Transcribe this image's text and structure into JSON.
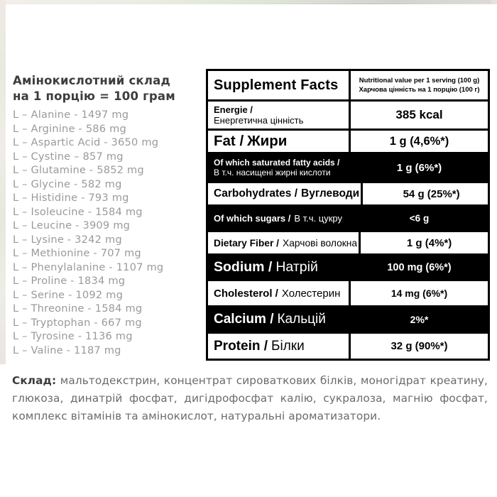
{
  "left_panel": {
    "heading_line1": "Амінокислотний склад",
    "heading_line2": "на 1 порцію = 100 грам",
    "amino_acids": [
      "L – Alanine - 1497 mg",
      "L – Arginine - 586 mg",
      "L – Aspartic Acid - 3650 mg",
      "L – Cystine – 857 mg",
      "L – Glutamine - 5852 mg",
      "L – Glycine - 582 mg",
      "L – Histidine - 793 mg",
      "L – Isoleucine - 1584 mg",
      "L – Leucine - 3909 mg",
      "L – Lysine - 3242 mg",
      "L – Methionine - 707 mg",
      "L – Phenylalanine - 1107 mg",
      "L – Proline - 1834 mg",
      "L – Serine - 1092 mg",
      "L – Threonine - 1584 mg",
      "L – Tryptophan - 667 mg",
      "L – Tyrosine - 1136 mg",
      "L – Valine - 1187 mg"
    ]
  },
  "supplement_facts": {
    "title": "Supplement Facts",
    "header_note_line1": "Nutritional value per 1 serving (100 g)",
    "header_note_line2": "Харчова цінність на 1 порцію (100 г)",
    "rows": [
      {
        "name_en": "Energie /",
        "name_ua": "Енергетична цінність",
        "value": "385 kcal"
      },
      {
        "name_en": "Fat /",
        "name_ua": "Жири",
        "value": "1 g (4,6%*)"
      },
      {
        "name_en": "Of which saturated fatty acids /",
        "name_ua": "В т.ч. насищені жирні кислоти",
        "value": "1 g (6%*)"
      },
      {
        "name_en": "Carbohydrates /",
        "name_ua": "Вуглеводи",
        "value": "54 g (25%*)"
      },
      {
        "name_en": "Of which sugars /",
        "name_ua": "В т.ч. цукру",
        "value": "<6 g"
      },
      {
        "name_en": "Dietary Fiber /",
        "name_ua": "Харчові волокна",
        "value": "1 g (4%*)"
      },
      {
        "name_en": "Sodium /",
        "name_ua": "Натрій",
        "value": "100 mg (6%*)"
      },
      {
        "name_en": "Cholesterol /",
        "name_ua": "Холестерин",
        "value": "14 mg (6%*)"
      },
      {
        "name_en": "Calcium /",
        "name_ua": "Кальцій",
        "value": "2%*"
      },
      {
        "name_en": "Protein /",
        "name_ua": "Білки",
        "value": "32 g (90%*)"
      }
    ]
  },
  "ingredients": {
    "label": "Склад:",
    "text": "мальтодекстрин, концентрат сироваткових білків, моногідрат креатину, глюкоза, динатрій фосфат, дигідрофосфат калію, сукралоза, магнію фосфат, комплекс вітамінів та амінокислот, натуральні ароматизатори."
  },
  "colors": {
    "table_border": "#000000",
    "dark_row_bg": "#000000",
    "dark_row_text": "#ffffff",
    "amino_list_text": "#9a9a9a",
    "heading_text": "#3d3d3d",
    "ingredients_text": "#6b6b6b"
  }
}
